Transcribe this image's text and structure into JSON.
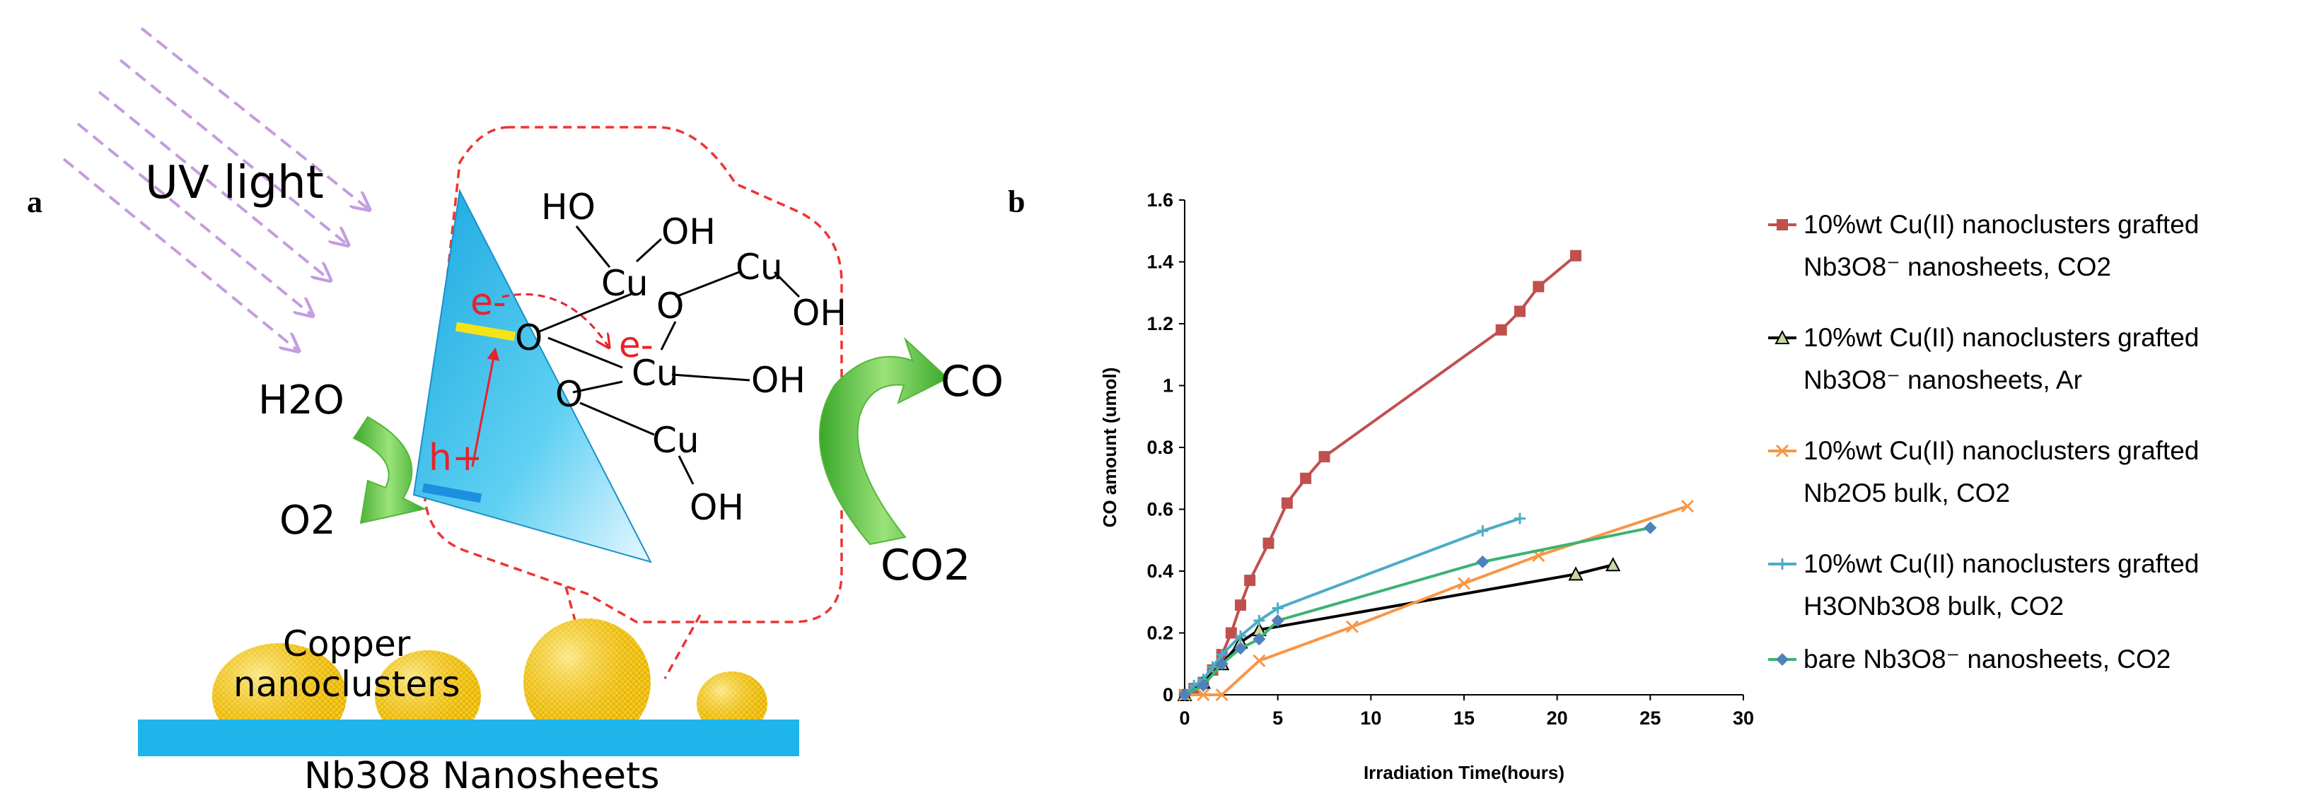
{
  "panel_a": {
    "label": "a",
    "uv_label": "UV light",
    "h2o_label": "H2O",
    "o2_label": "O2",
    "co_label": "CO",
    "co2_label": "CO2",
    "electron_label": "e-",
    "electron2_label": "e-",
    "hole_label": "h+",
    "copper_label_line1": "Copper",
    "copper_label_line2": "nanoclusters",
    "nanosheets_label": "Nb3O8 Nanosheets",
    "molecule": {
      "ho": "HO",
      "oh1": "OH",
      "cu1": "Cu",
      "cu2": "Cu",
      "oh2": "OH",
      "o1": "O",
      "o2": "O",
      "o3": "O",
      "cu3": "Cu",
      "oh3": "OH",
      "cu4": "Cu",
      "oh4": "OH"
    },
    "colors": {
      "crystal": "#3fc3ec",
      "arrow_green": "#66cc44",
      "uv_arrow": "#c49cdf",
      "dashed": "#ee3333",
      "cluster": "#f2c81a",
      "sheet": "#1fb4ea"
    }
  },
  "panel_b": {
    "label": "b"
  },
  "chart_data": {
    "type": "line",
    "xlabel": "Irradiation Time(hours)",
    "ylabel": "CO amount (umol)",
    "xlim": [
      0,
      30
    ],
    "ylim": [
      0,
      1.6
    ],
    "xticks": [
      0,
      5,
      10,
      15,
      20,
      25,
      30
    ],
    "yticks": [
      0,
      0.2,
      0.4,
      0.6,
      0.8,
      1,
      1.2,
      1.4,
      1.6
    ],
    "grid": false,
    "legend_position": "right",
    "series": [
      {
        "name_line1": "10%wt Cu(II) nanoclusters grafted",
        "name_line2": "Nb3O8⁻ nanosheets, CO2",
        "color": "#c0504d",
        "marker": "square",
        "x": [
          0,
          0.5,
          1,
          1.5,
          2,
          2.5,
          3,
          3.5,
          4.5,
          5.5,
          6.5,
          7.5,
          17,
          18,
          19,
          21
        ],
        "y": [
          0,
          0.02,
          0.04,
          0.08,
          0.13,
          0.2,
          0.29,
          0.37,
          0.49,
          0.62,
          0.7,
          0.77,
          1.18,
          1.24,
          1.32,
          1.42
        ]
      },
      {
        "name_line1": "10%wt Cu(II) nanoclusters grafted",
        "name_line2": "Nb3O8⁻ nanosheets, Ar",
        "color": "#000000",
        "marker": "triangle",
        "x": [
          0,
          1,
          2,
          3,
          4,
          21,
          23
        ],
        "y": [
          0,
          0.04,
          0.1,
          0.17,
          0.21,
          0.39,
          0.42
        ]
      },
      {
        "name_line1": "10%wt Cu(II) nanoclusters grafted",
        "name_line2": "Nb2O5 bulk, CO2",
        "color": "#f79646",
        "marker": "x",
        "x": [
          0,
          1,
          2,
          4,
          9,
          15,
          19,
          27
        ],
        "y": [
          0,
          0,
          0,
          0.11,
          0.22,
          0.36,
          0.45,
          0.61
        ]
      },
      {
        "name_line1": "10%wt Cu(II) nanoclusters grafted",
        "name_line2": "H3ONb3O8 bulk, CO2",
        "color": "#4bacc6",
        "marker": "plus",
        "x": [
          0,
          0.5,
          1,
          1.5,
          2,
          3,
          4,
          5,
          16,
          18
        ],
        "y": [
          0,
          0.03,
          0.05,
          0.09,
          0.13,
          0.19,
          0.24,
          0.28,
          0.53,
          0.57
        ]
      },
      {
        "name_line1": "bare Nb3O8⁻ nanosheets, CO2",
        "name_line2": "",
        "color": "#4f81bd",
        "marker": "diamond",
        "x": [
          0,
          1,
          2,
          3,
          4,
          5,
          16,
          25
        ],
        "y": [
          0,
          0.03,
          0.1,
          0.15,
          0.18,
          0.24,
          0.43,
          0.54
        ],
        "line_color": "#3cb371"
      }
    ]
  }
}
